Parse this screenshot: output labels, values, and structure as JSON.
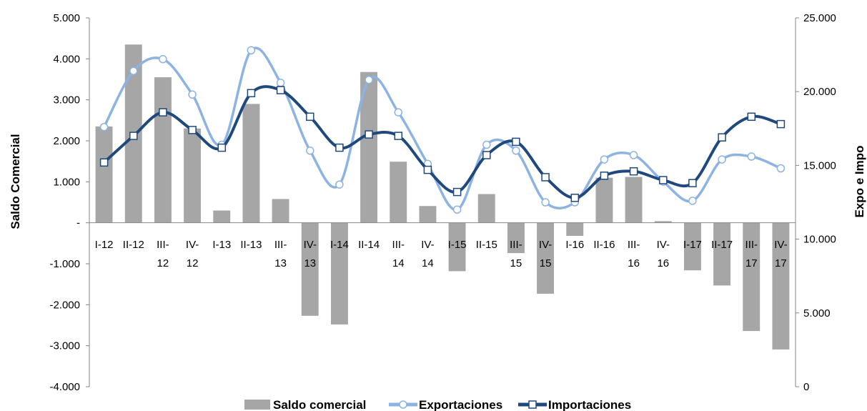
{
  "chart_data": {
    "type": "bar+line",
    "categories": [
      "I-12",
      "II-12",
      "III-12",
      "IV-12",
      "I-13",
      "II-13",
      "III-13",
      "IV-13",
      "I-14",
      "II-14",
      "III-14",
      "IV-14",
      "I-15",
      "II-15",
      "III-15",
      "IV-15",
      "I-16",
      "II-16",
      "III-16",
      "IV-16",
      "I-17",
      "II-17",
      "III-17",
      "IV-17"
    ],
    "category_lines": [
      [
        "I-12"
      ],
      [
        "II-12"
      ],
      [
        "III-",
        "12"
      ],
      [
        "IV-",
        "12"
      ],
      [
        "I-13"
      ],
      [
        "II-13"
      ],
      [
        "III-",
        "13"
      ],
      [
        "IV-",
        "13"
      ],
      [
        "I-14"
      ],
      [
        "II-14"
      ],
      [
        "III-",
        "14"
      ],
      [
        "IV-",
        "14"
      ],
      [
        "I-15"
      ],
      [
        "II-15"
      ],
      [
        "III-",
        "15"
      ],
      [
        "IV-",
        "15"
      ],
      [
        "I-16"
      ],
      [
        "II-16"
      ],
      [
        "III-",
        "16"
      ],
      [
        "IV-",
        "16"
      ],
      [
        "I-17"
      ],
      [
        "II-17"
      ],
      [
        "III-",
        "17"
      ],
      [
        "IV-",
        "17"
      ]
    ],
    "series": [
      {
        "name": "Saldo comercial",
        "type": "bar",
        "axis": "left",
        "color": "#a6a6a6",
        "values": [
          2350,
          4350,
          3550,
          2300,
          300,
          2900,
          580,
          -2270,
          -2480,
          3680,
          1490,
          410,
          -1180,
          700,
          -740,
          -1730,
          -320,
          1100,
          1120,
          40,
          -1160,
          -1530,
          -2640,
          -3090
        ]
      },
      {
        "name": "Exportaciones",
        "type": "line",
        "axis": "right",
        "color": "#8db3e2",
        "marker": "circle",
        "values": [
          17600,
          21400,
          22200,
          19800,
          16400,
          22800,
          20600,
          16000,
          13700,
          20800,
          18600,
          15100,
          12000,
          16400,
          16000,
          12500,
          12500,
          15400,
          15700,
          13900,
          12600,
          15400,
          15600,
          14800
        ]
      },
      {
        "name": "Importaciones",
        "type": "line",
        "axis": "right",
        "color": "#1f497d",
        "marker": "square",
        "values": [
          15200,
          17000,
          18600,
          17400,
          16200,
          19900,
          20100,
          18300,
          16200,
          17100,
          17000,
          14700,
          13200,
          15700,
          16600,
          14200,
          12800,
          14300,
          14600,
          14000,
          13800,
          16900,
          18300,
          17800
        ]
      }
    ],
    "ylabel": "Saldo Comercial",
    "y2label": "Expo e Impo",
    "ylim": [
      -4000,
      5000
    ],
    "y2lim": [
      0,
      25000
    ],
    "yticks": [
      "5.000",
      "4.000",
      "3.000",
      "2.000",
      "1.000",
      "-",
      "-1.000",
      "-2.000",
      "-3.000",
      "-4.000"
    ],
    "y2ticks": [
      "25.000",
      "20.000",
      "15.000",
      "10.000",
      "5.000",
      "0"
    ],
    "legend_position": "bottom",
    "grid": false
  }
}
